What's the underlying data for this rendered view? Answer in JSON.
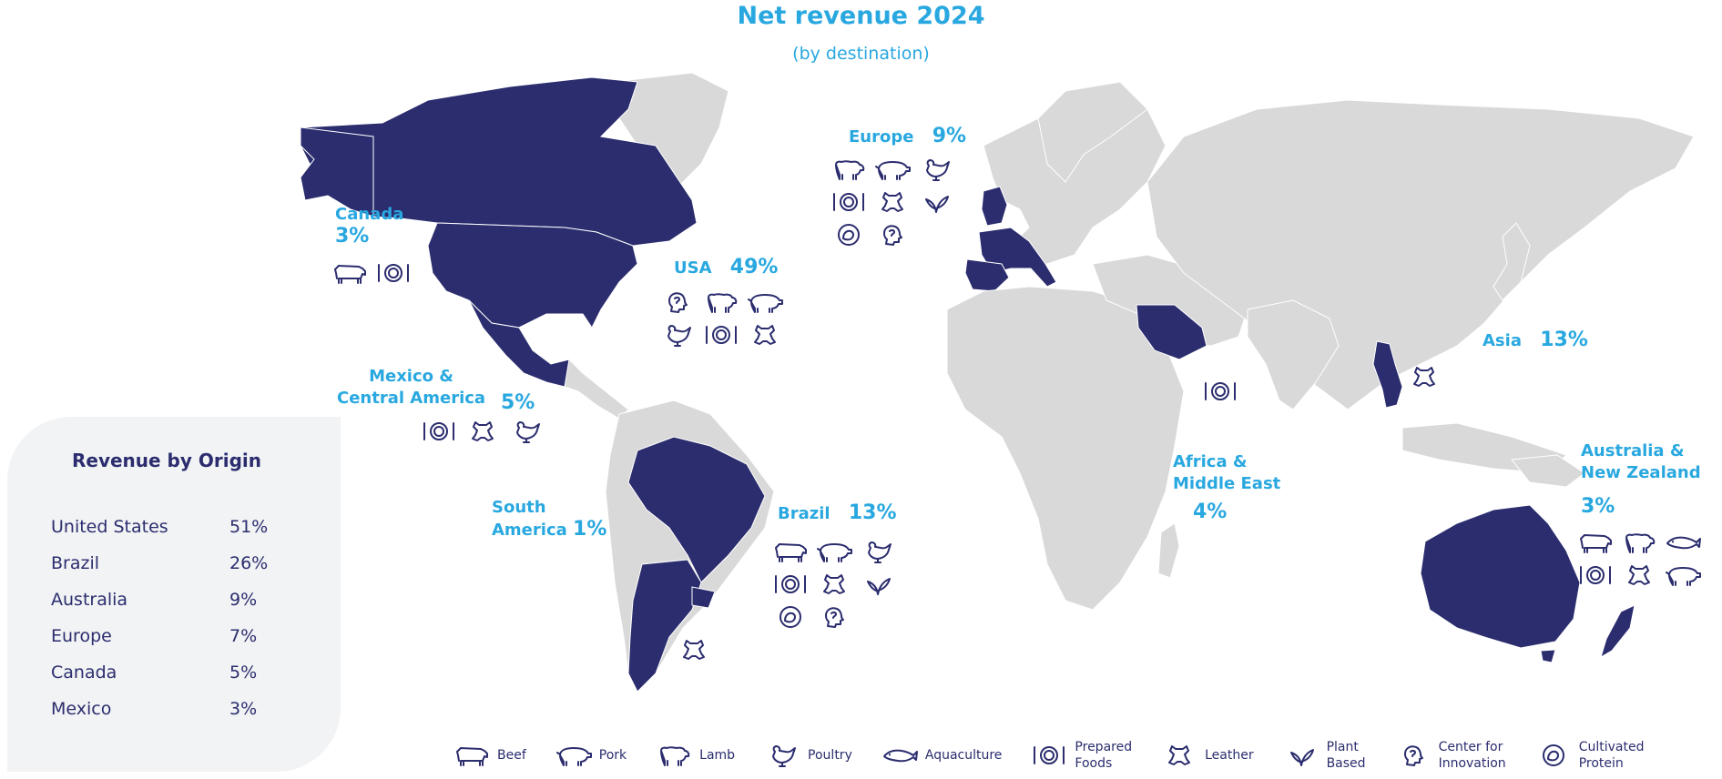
{
  "header": {
    "title": "Net revenue  2024",
    "subtitle": "(by destination)"
  },
  "colors": {
    "highlight": "#2b2d6e",
    "land": "#d9d9d9",
    "accent": "#29a8e0",
    "icon": "#2b2d6e"
  },
  "regions": {
    "canada": {
      "name": "Canada",
      "value": "3%",
      "icons": [
        "beef-icon",
        "prepared-foods-icon"
      ]
    },
    "usa": {
      "name": "USA",
      "value": "49%",
      "icons": [
        "center-for-innovation-icon",
        "lamb-icon",
        "pork-icon",
        "poultry-icon",
        "prepared-foods-icon",
        "leather-icon"
      ]
    },
    "mexico": {
      "name_line1": "Mexico &",
      "name_line2": "Central America",
      "value": "5%",
      "icons": [
        "prepared-foods-icon",
        "leather-icon",
        "poultry-icon"
      ]
    },
    "south_america": {
      "name_line1": "South",
      "name_line2": "America",
      "value": "1%",
      "icons": [
        "leather-icon"
      ]
    },
    "brazil": {
      "name": "Brazil",
      "value": "13%",
      "icons": [
        "beef-icon",
        "pork-icon",
        "poultry-icon",
        "prepared-foods-icon",
        "leather-icon",
        "plant-based-icon",
        "cultivated-protein-icon",
        "center-for-innovation-icon"
      ]
    },
    "europe": {
      "name": "Europe",
      "value": "9%",
      "icons": [
        "lamb-icon",
        "pork-icon",
        "poultry-icon",
        "prepared-foods-icon",
        "leather-icon",
        "plant-based-icon",
        "cultivated-protein-icon",
        "center-for-innovation-icon"
      ]
    },
    "africa": {
      "name_line1": "Africa &",
      "name_line2": "Middle East",
      "value": "4%",
      "icons": [
        "prepared-foods-icon"
      ]
    },
    "asia": {
      "name": "Asia",
      "value": "13%",
      "icons": [
        "leather-icon"
      ]
    },
    "australia": {
      "name_line1": "Australia &",
      "name_line2": "New Zealand",
      "value": "3%",
      "icons": [
        "beef-icon",
        "lamb-icon",
        "aquaculture-icon",
        "prepared-foods-icon",
        "leather-icon",
        "pork-icon"
      ]
    }
  },
  "origin": {
    "title": "Revenue by Origin",
    "rows": [
      {
        "name": "United States",
        "value": "51%"
      },
      {
        "name": "Brazil",
        "value": "26%"
      },
      {
        "name": "Australia",
        "value": "9%"
      },
      {
        "name": "Europe",
        "value": "7%"
      },
      {
        "name": "Canada",
        "value": "5%"
      },
      {
        "name": "Mexico",
        "value": "3%"
      }
    ]
  },
  "legend": [
    {
      "icon": "beef-icon",
      "label1": "Beef",
      "label2": ""
    },
    {
      "icon": "pork-icon",
      "label1": "Pork",
      "label2": ""
    },
    {
      "icon": "lamb-icon",
      "label1": "Lamb",
      "label2": ""
    },
    {
      "icon": "poultry-icon",
      "label1": "Poultry",
      "label2": ""
    },
    {
      "icon": "aquaculture-icon",
      "label1": "Aquaculture",
      "label2": ""
    },
    {
      "icon": "prepared-foods-icon",
      "label1": "Prepared",
      "label2": "Foods"
    },
    {
      "icon": "leather-icon",
      "label1": "Leather",
      "label2": ""
    },
    {
      "icon": "plant-based-icon",
      "label1": "Plant",
      "label2": "Based"
    },
    {
      "icon": "center-for-innovation-icon",
      "label1": "Center for",
      "label2": "Innovation"
    },
    {
      "icon": "cultivated-protein-icon",
      "label1": "Cultivated",
      "label2": "Protein"
    }
  ]
}
